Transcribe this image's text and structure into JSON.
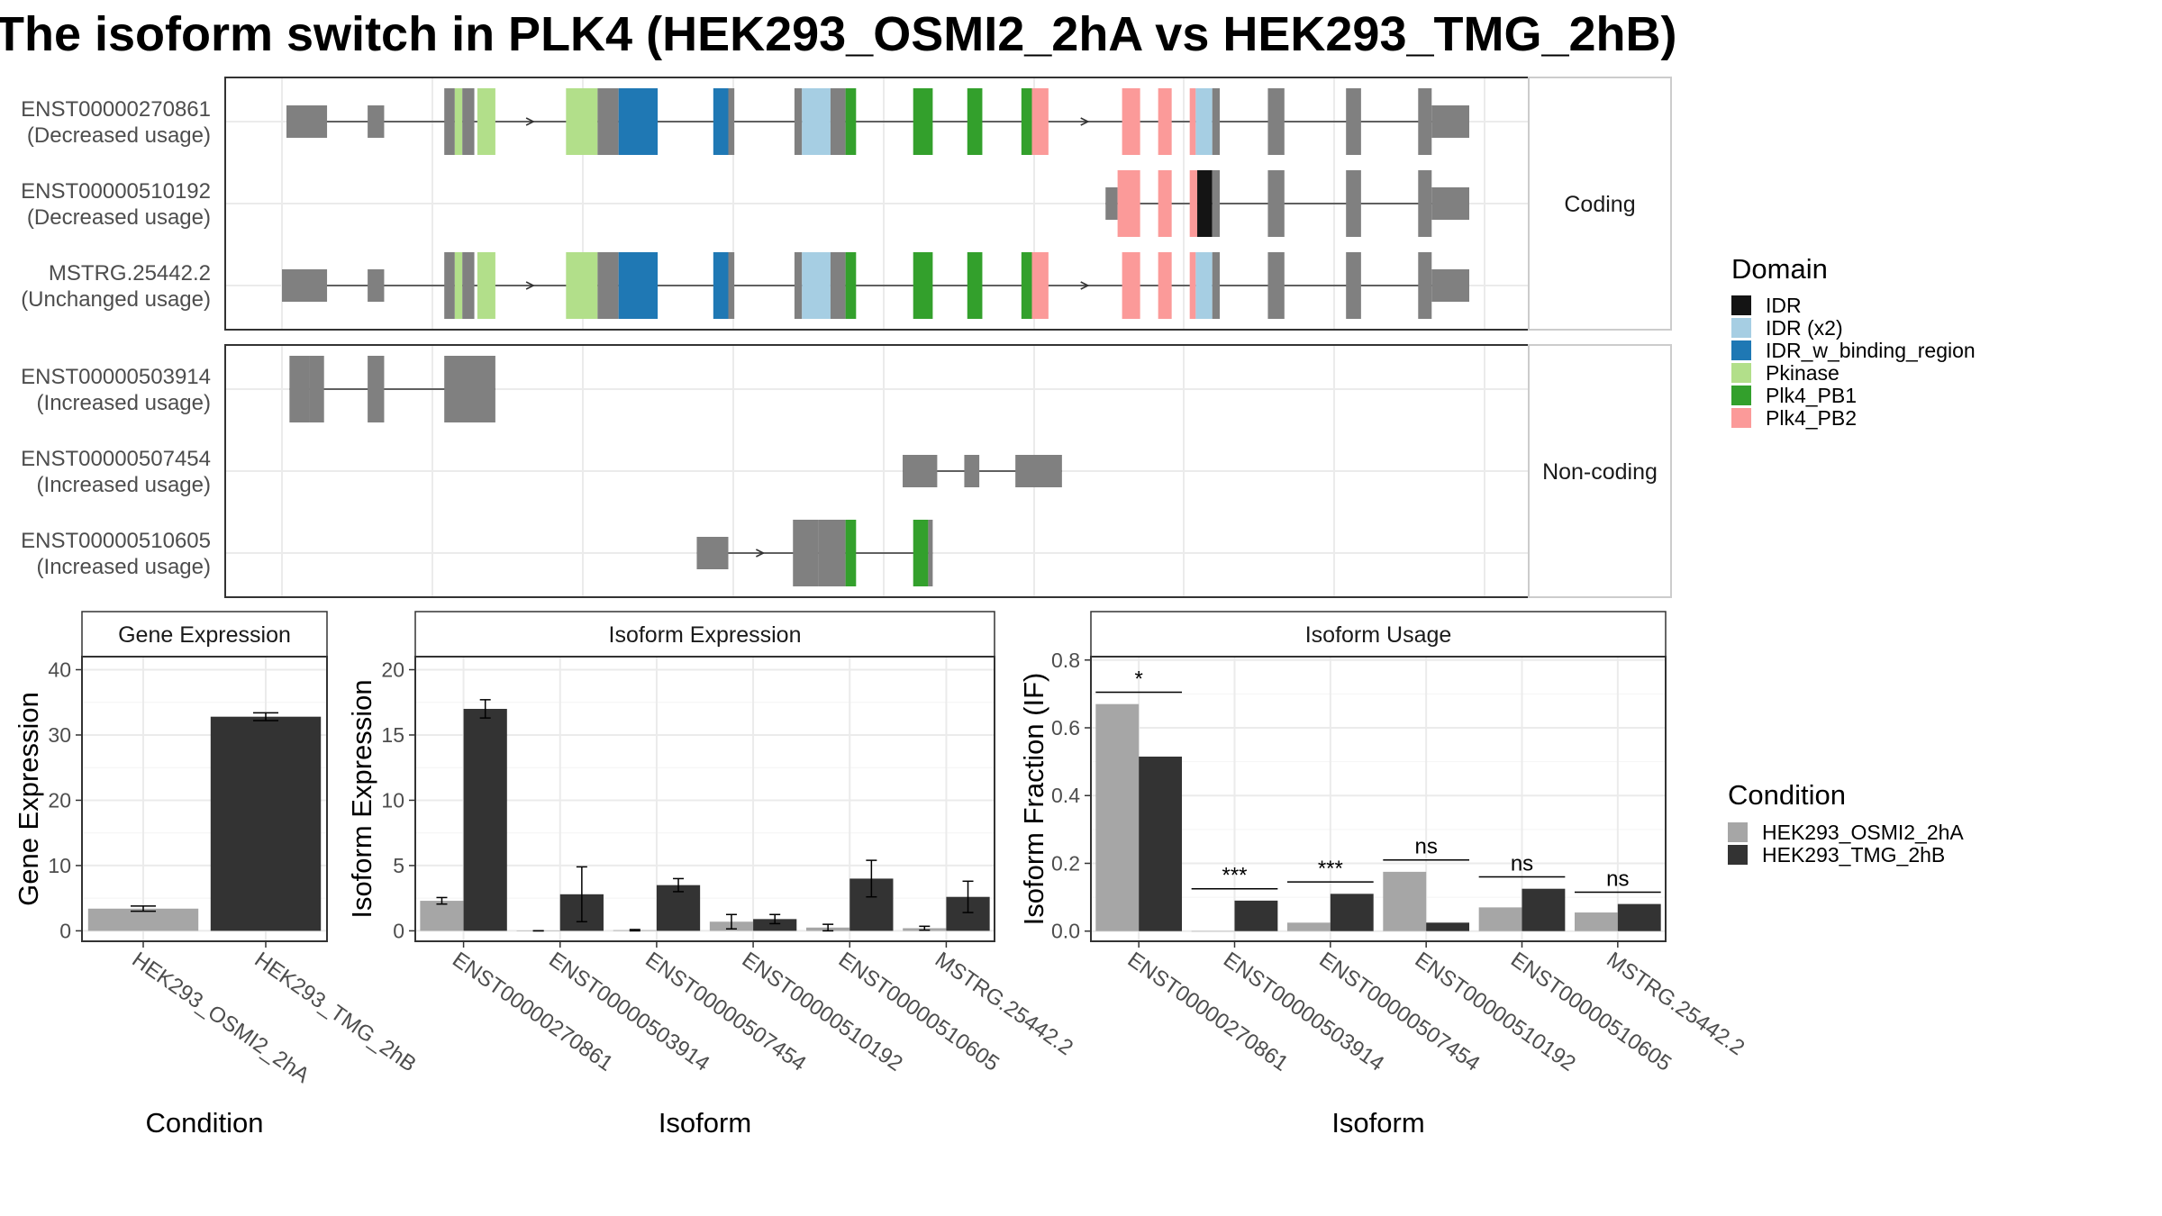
{
  "title": "The isoform switch in PLK4 (HEK293_OSMI2_2hA vs HEK293_TMG_2hB)",
  "colors": {
    "exon_plain": "#808080",
    "IDR": "#141414",
    "IDR (x2)": "#A6CEE3",
    "IDR_w_binding_region": "#1F78B4",
    "Pkinase": "#B2DF8A",
    "Plk4_PB1": "#33A02C",
    "Plk4_PB2": "#FB9A99",
    "cond_A": "#A6A6A6",
    "cond_B": "#333333",
    "frame": "#333333",
    "grid": "#EBEBEB",
    "strip_text": "#1A1A1A",
    "axis_text": "#4D4D4D"
  },
  "transcript_panels": [
    {
      "strip": "Coding",
      "tracks": [
        {
          "id": "ENST00000270861",
          "usage": "(Decreased usage)",
          "exons": [
            [
              0.3,
              3.0,
              "none"
            ],
            [
              5.7,
              6.8,
              "none"
            ],
            [
              10.8,
              11.5,
              "none"
            ],
            [
              11.5,
              12.0,
              "Pkinase"
            ],
            [
              12.0,
              12.8,
              "none"
            ],
            [
              13.0,
              14.2,
              "Pkinase"
            ],
            [
              18.9,
              21.0,
              "Pkinase"
            ],
            [
              21.0,
              22.4,
              "none"
            ],
            [
              22.4,
              25.0,
              "IDR_w_binding_region"
            ],
            [
              28.7,
              29.7,
              "IDR_w_binding_region"
            ],
            [
              29.7,
              30.1,
              "none"
            ],
            [
              34.1,
              34.6,
              "none"
            ],
            [
              34.6,
              36.5,
              "IDR (x2)"
            ],
            [
              36.5,
              37.5,
              "none"
            ],
            [
              37.5,
              38.2,
              "Plk4_PB1"
            ],
            [
              42.0,
              43.3,
              "Plk4_PB1"
            ],
            [
              45.6,
              46.6,
              "Plk4_PB1"
            ],
            [
              49.2,
              49.9,
              "Plk4_PB1"
            ],
            [
              49.9,
              51.0,
              "Plk4_PB2"
            ],
            [
              55.9,
              57.1,
              "Plk4_PB2"
            ],
            [
              58.3,
              59.2,
              "Plk4_PB2"
            ],
            [
              60.4,
              60.8,
              "Plk4_PB2"
            ],
            [
              60.8,
              61.9,
              "IDR (x2)"
            ],
            [
              61.9,
              62.4,
              "none"
            ],
            [
              65.6,
              66.7,
              "none"
            ],
            [
              70.8,
              71.8,
              "none"
            ],
            [
              75.6,
              76.5,
              "none"
            ],
            [
              76.5,
              79.0,
              "none"
            ]
          ]
        },
        {
          "id": "ENST00000510192",
          "usage": "(Decreased usage)",
          "exons": [
            [
              54.8,
              55.6,
              "none"
            ],
            [
              55.6,
              57.1,
              "Plk4_PB2"
            ],
            [
              58.3,
              59.2,
              "Plk4_PB2"
            ],
            [
              60.4,
              60.9,
              "Plk4_PB2"
            ],
            [
              60.9,
              61.9,
              "IDR"
            ],
            [
              61.9,
              62.4,
              "none"
            ],
            [
              65.6,
              66.7,
              "none"
            ],
            [
              70.8,
              71.8,
              "none"
            ],
            [
              75.6,
              76.5,
              "none"
            ],
            [
              76.5,
              79.0,
              "none"
            ]
          ]
        },
        {
          "id": "MSTRG.25442.2",
          "usage": "(Unchanged usage)",
          "exons": [
            [
              0.0,
              3.0,
              "none"
            ],
            [
              5.7,
              6.8,
              "none"
            ],
            [
              10.8,
              11.5,
              "none"
            ],
            [
              11.5,
              12.0,
              "Pkinase"
            ],
            [
              12.0,
              12.8,
              "none"
            ],
            [
              13.0,
              14.2,
              "Pkinase"
            ],
            [
              18.9,
              21.0,
              "Pkinase"
            ],
            [
              21.0,
              22.4,
              "none"
            ],
            [
              22.4,
              25.0,
              "IDR_w_binding_region"
            ],
            [
              28.7,
              29.7,
              "IDR_w_binding_region"
            ],
            [
              29.7,
              30.1,
              "none"
            ],
            [
              34.1,
              34.6,
              "none"
            ],
            [
              34.6,
              36.5,
              "IDR (x2)"
            ],
            [
              36.5,
              37.5,
              "none"
            ],
            [
              37.5,
              38.2,
              "Plk4_PB1"
            ],
            [
              42.0,
              43.3,
              "Plk4_PB1"
            ],
            [
              45.6,
              46.6,
              "Plk4_PB1"
            ],
            [
              49.2,
              49.9,
              "Plk4_PB1"
            ],
            [
              49.9,
              51.0,
              "Plk4_PB2"
            ],
            [
              55.9,
              57.1,
              "Plk4_PB2"
            ],
            [
              58.3,
              59.2,
              "Plk4_PB2"
            ],
            [
              60.4,
              60.8,
              "Plk4_PB2"
            ],
            [
              60.8,
              61.9,
              "IDR (x2)"
            ],
            [
              61.9,
              62.4,
              "none"
            ],
            [
              65.6,
              66.7,
              "none"
            ],
            [
              70.8,
              71.8,
              "none"
            ],
            [
              75.6,
              76.5,
              "none"
            ],
            [
              76.5,
              79.0,
              "none"
            ]
          ]
        }
      ]
    },
    {
      "strip": "Non-coding",
      "tracks": [
        {
          "id": "ENST00000503914",
          "usage": "(Increased usage)",
          "exons": [
            [
              0.5,
              1.8,
              "none"
            ],
            [
              1.8,
              2.8,
              "none"
            ],
            [
              5.7,
              6.8,
              "none"
            ],
            [
              10.8,
              14.2,
              "none"
            ]
          ]
        },
        {
          "id": "ENST00000507454",
          "usage": "(Increased usage)",
          "exons": [
            [
              41.3,
              43.6,
              "none"
            ],
            [
              45.4,
              46.4,
              "none"
            ],
            [
              48.8,
              51.9,
              "none"
            ]
          ]
        },
        {
          "id": "ENST00000510605",
          "usage": "(Increased usage)",
          "exons": [
            [
              27.6,
              29.7,
              "none"
            ],
            [
              34.0,
              35.7,
              "none"
            ],
            [
              35.7,
              37.5,
              "none"
            ],
            [
              37.5,
              38.2,
              "Plk4_PB1"
            ],
            [
              42.0,
              43.0,
              "Plk4_PB1"
            ],
            [
              43.0,
              43.3,
              "none"
            ]
          ]
        }
      ]
    }
  ],
  "domain_legend": {
    "title": "Domain",
    "items": [
      "IDR",
      "IDR (x2)",
      "IDR_w_binding_region",
      "Pkinase",
      "Plk4_PB1",
      "Plk4_PB2"
    ]
  },
  "condition_legend": {
    "title": "Condition",
    "items": [
      "HEK293_OSMI2_2hA",
      "HEK293_TMG_2hB"
    ]
  },
  "chart_data": [
    {
      "type": "bar",
      "strip": "Gene Expression",
      "xlabel": "Condition",
      "ylabel": "Gene Expression",
      "ylim": [
        -1.6,
        42
      ],
      "yticks": [
        0,
        10,
        20,
        30,
        40
      ],
      "categories": [
        "HEK293_OSMI2_2hA",
        "HEK293_TMG_2hB"
      ],
      "values": [
        3.4,
        32.8
      ],
      "errors": [
        0.4,
        0.6
      ]
    },
    {
      "type": "bar",
      "strip": "Isoform Expression",
      "xlabel": "Isoform",
      "ylabel": "Isoform Expression",
      "ylim": [
        -0.8,
        21
      ],
      "yticks": [
        0,
        5,
        10,
        15,
        20
      ],
      "categories": [
        "ENST00000270861",
        "ENST00000503914",
        "ENST00000507454",
        "ENST00000510192",
        "ENST00000510605",
        "MSTRG.25442.2"
      ],
      "series": [
        {
          "name": "HEK293_OSMI2_2hA",
          "values": [
            2.3,
            0.0,
            0.05,
            0.7,
            0.25,
            0.2
          ],
          "errors": [
            0.25,
            0.0,
            0.05,
            0.55,
            0.25,
            0.15
          ]
        },
        {
          "name": "HEK293_TMG_2hB",
          "values": [
            17.0,
            2.8,
            3.5,
            0.9,
            4.0,
            2.6
          ],
          "errors": [
            0.7,
            2.1,
            0.5,
            0.35,
            1.4,
            1.2
          ]
        }
      ]
    },
    {
      "type": "bar",
      "strip": "Isoform Usage",
      "xlabel": "Isoform",
      "ylabel": "Isoform Fraction (IF)",
      "ylim": [
        -0.03,
        0.81
      ],
      "yticks": [
        0.0,
        0.2,
        0.4,
        0.6,
        0.8
      ],
      "ytick_labels": [
        "0.0",
        "0.2",
        "0.4",
        "0.6",
        "0.8"
      ],
      "categories": [
        "ENST00000270861",
        "ENST00000503914",
        "ENST00000507454",
        "ENST00000510192",
        "ENST00000510605",
        "MSTRG.25442.2"
      ],
      "series": [
        {
          "name": "HEK293_OSMI2_2hA",
          "values": [
            0.67,
            0.0,
            0.025,
            0.175,
            0.07,
            0.055
          ]
        },
        {
          "name": "HEK293_TMG_2hB",
          "values": [
            0.515,
            0.09,
            0.11,
            0.025,
            0.125,
            0.08
          ]
        }
      ],
      "significance": [
        "*",
        "***",
        "***",
        "ns",
        "ns",
        "ns"
      ],
      "significance_y": [
        0.705,
        0.125,
        0.145,
        0.21,
        0.16,
        0.115
      ]
    }
  ]
}
